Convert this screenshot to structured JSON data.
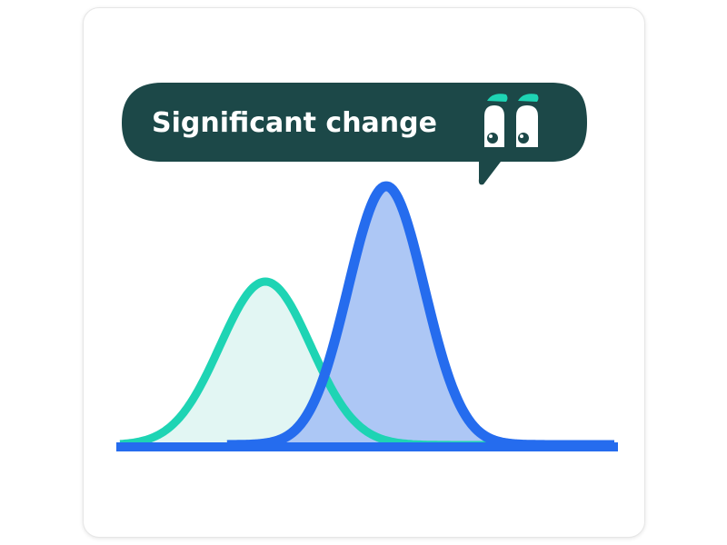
{
  "bubble": {
    "text": "Significant change",
    "background_color": "#1c4848",
    "text_color": "#ffffff",
    "icon": "cartoon-eyes-icon"
  },
  "curves": {
    "before": {
      "stroke_color": "#1ed4b4",
      "fill_color": "#e2f6f3",
      "peak": "lower, left"
    },
    "after": {
      "stroke_color": "#256cee",
      "fill_color": "#a9c4f4",
      "peak": "higher, right"
    },
    "overlap_fill_color": "#9ec0ea"
  },
  "baseline_color": "#256cee"
}
